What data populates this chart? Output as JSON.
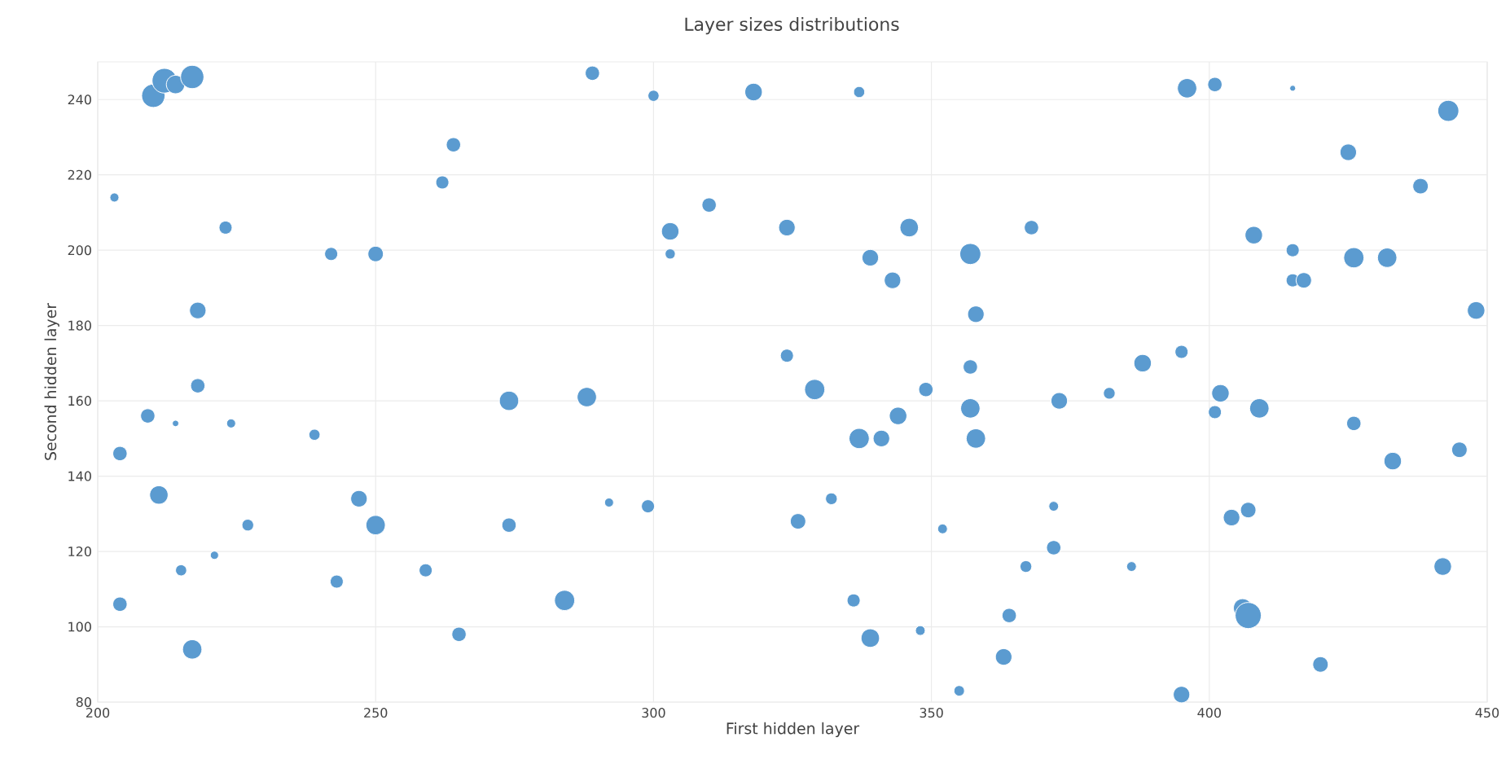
{
  "chart_data": {
    "type": "bubble",
    "title": "Layer sizes distributions",
    "xlabel": "First hidden layer",
    "ylabel": "Second hidden layer",
    "color": "#5b9bd0",
    "grid": true,
    "xlim": [
      200,
      450
    ],
    "ylim": [
      80,
      250
    ],
    "xticks": [
      200,
      250,
      300,
      350,
      400,
      450
    ],
    "yticks": [
      80,
      100,
      120,
      140,
      160,
      180,
      200,
      220,
      240
    ],
    "x": [
      210,
      212,
      214,
      217,
      203,
      223,
      218,
      218,
      242,
      250,
      262,
      264,
      289,
      300,
      303,
      303,
      310,
      318,
      324,
      337,
      339,
      343,
      346,
      357,
      358,
      368,
      396,
      401,
      415,
      443,
      425,
      438,
      408,
      415,
      415,
      417,
      426,
      432,
      448,
      204,
      209,
      214,
      224,
      239,
      211,
      215,
      221,
      227,
      247,
      250,
      243,
      259,
      204,
      217,
      265,
      274,
      274,
      288,
      284,
      292,
      299,
      324,
      329,
      326,
      332,
      337,
      341,
      344,
      349,
      357,
      357,
      358,
      373,
      352,
      336,
      339,
      348,
      355,
      363,
      364,
      367,
      372,
      372,
      382,
      386,
      388,
      395,
      401,
      402,
      409,
      404,
      407,
      406,
      407,
      395,
      420,
      426,
      433,
      442,
      445
    ],
    "values": [
      241,
      245,
      244,
      246,
      214,
      206,
      184,
      164,
      199,
      199,
      218,
      228,
      247,
      241,
      205,
      199,
      212,
      242,
      206,
      242,
      198,
      192,
      206,
      199,
      183,
      206,
      243,
      244,
      243,
      237,
      226,
      217,
      204,
      200,
      192,
      192,
      198,
      198,
      184,
      146,
      156,
      154,
      154,
      151,
      135,
      115,
      119,
      127,
      134,
      127,
      112,
      115,
      106,
      94,
      98,
      160,
      127,
      161,
      107,
      133,
      132,
      172,
      163,
      128,
      134,
      150,
      150,
      156,
      163,
      169,
      158,
      150,
      160,
      126,
      107,
      97,
      99,
      83,
      92,
      103,
      116,
      132,
      121,
      162,
      116,
      170,
      173,
      157,
      162,
      158,
      129,
      131,
      105,
      103,
      82,
      90,
      154,
      144,
      116,
      147
    ],
    "sizes": [
      0.8,
      0.9,
      0.5,
      0.8,
      0.12,
      0.25,
      0.4,
      0.3,
      0.25,
      0.35,
      0.25,
      0.3,
      0.3,
      0.18,
      0.45,
      0.15,
      0.3,
      0.45,
      0.4,
      0.18,
      0.4,
      0.4,
      0.5,
      0.65,
      0.4,
      0.3,
      0.55,
      0.3,
      0.05,
      0.65,
      0.4,
      0.35,
      0.45,
      0.25,
      0.25,
      0.35,
      0.6,
      0.55,
      0.45,
      0.3,
      0.3,
      0.06,
      0.12,
      0.18,
      0.5,
      0.18,
      0.1,
      0.2,
      0.4,
      0.55,
      0.25,
      0.25,
      0.3,
      0.55,
      0.3,
      0.55,
      0.3,
      0.55,
      0.6,
      0.12,
      0.25,
      0.25,
      0.6,
      0.35,
      0.2,
      0.6,
      0.4,
      0.45,
      0.3,
      0.3,
      0.55,
      0.55,
      0.4,
      0.14,
      0.25,
      0.5,
      0.14,
      0.16,
      0.4,
      0.3,
      0.2,
      0.14,
      0.3,
      0.2,
      0.14,
      0.45,
      0.25,
      0.25,
      0.45,
      0.55,
      0.4,
      0.35,
      0.5,
      1.0,
      0.4,
      0.35,
      0.3,
      0.45,
      0.45,
      0.35
    ]
  }
}
